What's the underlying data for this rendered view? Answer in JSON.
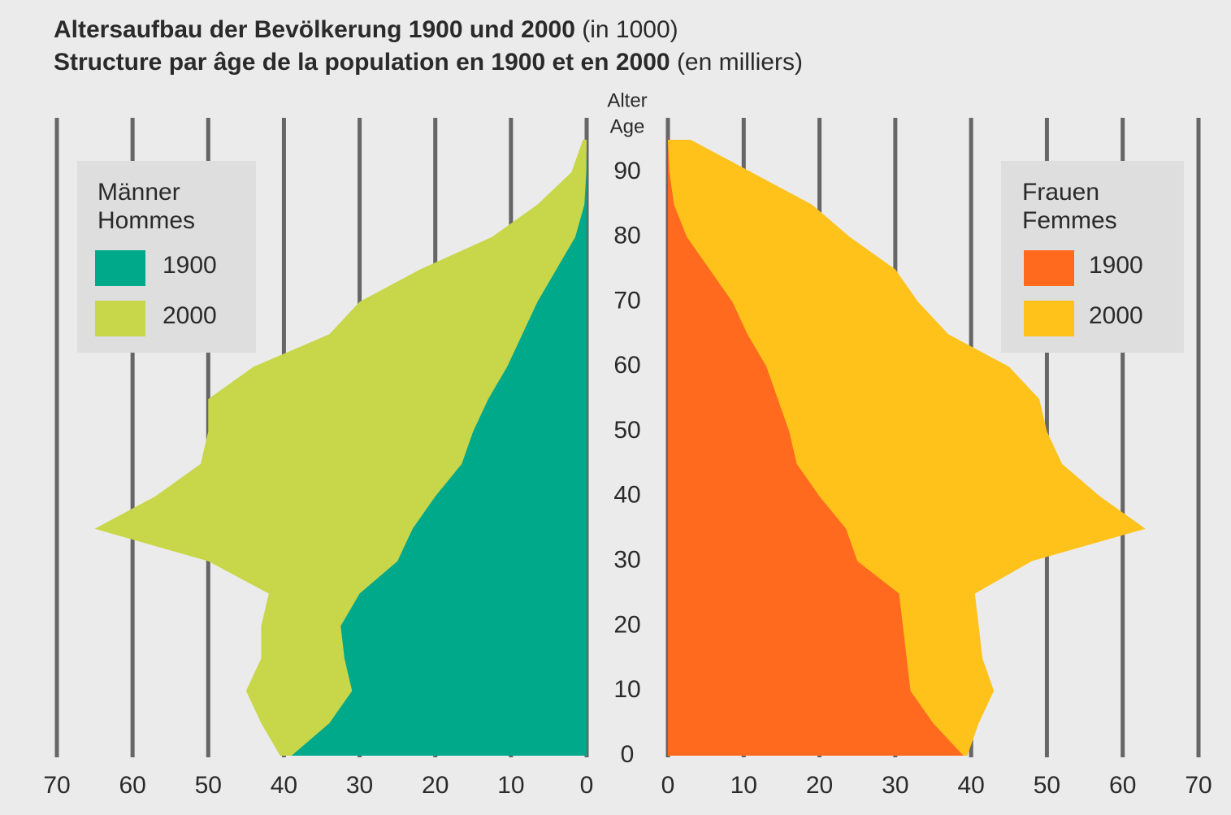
{
  "chart_data": {
    "type": "pyramid",
    "title": "Altersaufbau der Bevölkerung 1900 und 2000",
    "title_unit": "(in 1000)",
    "subtitle": "Structure par âge de la population en 1900 et en 2000",
    "subtitle_unit": "(en milliers)",
    "age_label": [
      "Alter",
      "Age"
    ],
    "y": [
      0,
      5,
      10,
      15,
      20,
      25,
      30,
      35,
      40,
      45,
      50,
      55,
      60,
      65,
      70,
      75,
      80,
      85,
      90,
      95
    ],
    "ylim": [
      0,
      98
    ],
    "yticks": [
      0,
      10,
      20,
      30,
      40,
      50,
      60,
      70,
      80,
      90
    ],
    "xlim": [
      0,
      70
    ],
    "xticks": [
      0,
      10,
      20,
      30,
      40,
      50,
      60,
      70
    ],
    "grid": true,
    "left": {
      "legend_title": [
        "Männer",
        "Hommes"
      ],
      "series": [
        {
          "name": "1900",
          "color": "#00a98a",
          "values": [
            39,
            34,
            31,
            32,
            32.5,
            30,
            25,
            23,
            20,
            16.5,
            15,
            13,
            10.5,
            8.5,
            6.5,
            4,
            1.5,
            0.3,
            0.05,
            0
          ]
        },
        {
          "name": "2000",
          "color": "#c8d64a",
          "values": [
            40.5,
            43,
            45,
            43,
            43,
            42,
            50,
            65,
            57,
            51,
            50,
            50,
            44,
            34,
            30,
            22,
            12.5,
            6.5,
            2,
            0.5
          ]
        }
      ]
    },
    "right": {
      "legend_title": [
        "Frauen",
        "Femmes"
      ],
      "series": [
        {
          "name": "1900",
          "color": "#ff6a1f",
          "values": [
            39,
            35,
            32,
            31.5,
            31,
            30.5,
            25,
            23.5,
            20,
            17,
            16,
            14.5,
            13,
            10.5,
            8.5,
            5.5,
            2.5,
            0.8,
            0.2,
            0
          ]
        },
        {
          "name": "2000",
          "color": "#ffc21a",
          "values": [
            39.5,
            41,
            43,
            41.5,
            41,
            40.5,
            48,
            63,
            57,
            52,
            50,
            49,
            45,
            37,
            33,
            30,
            24,
            19,
            11,
            3
          ]
        }
      ]
    }
  }
}
